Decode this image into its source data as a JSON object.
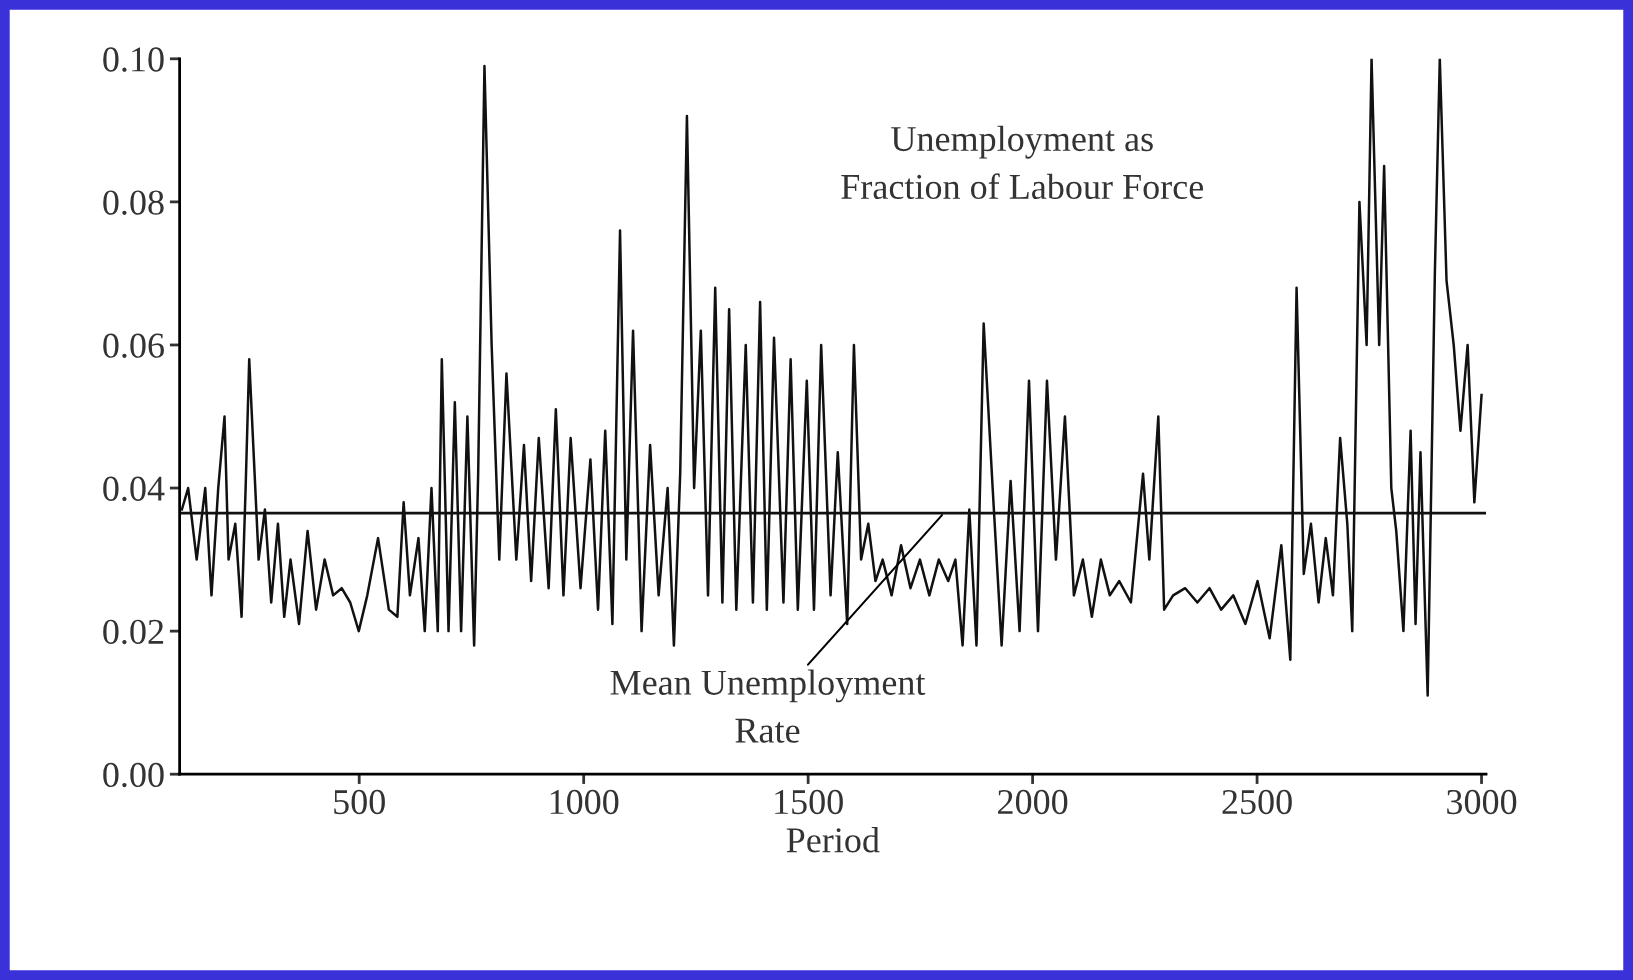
{
  "chart_data": {
    "type": "line",
    "xlabel": "Period",
    "xlim": [
      100,
      3010
    ],
    "ylim": [
      0,
      0.1
    ],
    "xticks": [
      500,
      1000,
      1500,
      2000,
      2500,
      3000
    ],
    "yticks": [
      {
        "value": 0,
        "label": "0.00"
      },
      {
        "value": 0.02,
        "label": "0.02"
      },
      {
        "value": 0.04,
        "label": "0.04"
      },
      {
        "value": 0.06,
        "label": "0.06"
      },
      {
        "value": 0.08,
        "label": "0.08"
      },
      {
        "value": 0.1,
        "label": "0.10"
      }
    ],
    "grid": false,
    "legend": false,
    "marker": "none",
    "line_style": "solid",
    "series": [
      {
        "color": "#111111",
        "x": [
          105,
          119,
          138,
          157,
          171,
          186,
          200,
          209,
          224,
          238,
          247,
          255,
          276,
          290,
          304,
          319,
          333,
          347,
          366,
          385,
          404,
          423,
          442,
          461,
          480,
          499,
          518,
          542,
          566,
          585,
          599,
          613,
          632,
          646,
          661,
          675,
          684,
          699,
          713,
          727,
          741,
          756,
          765,
          779,
          795,
          812,
          828,
          850,
          867,
          883,
          900,
          922,
          938,
          955,
          971,
          993,
          1015,
          1032,
          1048,
          1064,
          1081,
          1095,
          1110,
          1129,
          1148,
          1167,
          1187,
          1201,
          1215,
          1230,
          1246,
          1261,
          1277,
          1293,
          1309,
          1324,
          1340,
          1361,
          1377,
          1393,
          1408,
          1424,
          1445,
          1461,
          1477,
          1497,
          1513,
          1529,
          1550,
          1566,
          1587,
          1602,
          1618,
          1634,
          1650,
          1666,
          1686,
          1707,
          1728,
          1749,
          1770,
          1791,
          1812,
          1828,
          1844,
          1859,
          1875,
          1891,
          1911,
          1931,
          1951,
          1971,
          1992,
          2012,
          2032,
          2052,
          2072,
          2092,
          2112,
          2132,
          2152,
          2172,
          2193,
          2219,
          2246,
          2260,
          2280,
          2293,
          2313,
          2340,
          2367,
          2394,
          2420,
          2447,
          2474,
          2501,
          2528,
          2554,
          2574,
          2588,
          2604,
          2620,
          2637,
          2653,
          2669,
          2685,
          2701,
          2712,
          2728,
          2744,
          2755,
          2772,
          2783,
          2799,
          2810,
          2826,
          2842,
          2853,
          2864,
          2880,
          2896,
          2907,
          2922,
          2938,
          2953,
          2969,
          2984,
          3000
        ],
        "values": [
          0.037,
          0.04,
          0.03,
          0.04,
          0.025,
          0.04,
          0.05,
          0.03,
          0.035,
          0.022,
          0.04,
          0.058,
          0.03,
          0.037,
          0.024,
          0.035,
          0.022,
          0.03,
          0.021,
          0.034,
          0.023,
          0.03,
          0.025,
          0.026,
          0.024,
          0.02,
          0.025,
          0.033,
          0.023,
          0.022,
          0.038,
          0.025,
          0.033,
          0.02,
          0.04,
          0.02,
          0.058,
          0.02,
          0.052,
          0.02,
          0.05,
          0.018,
          0.042,
          0.099,
          0.06,
          0.03,
          0.056,
          0.03,
          0.046,
          0.027,
          0.047,
          0.026,
          0.051,
          0.025,
          0.047,
          0.026,
          0.044,
          0.023,
          0.048,
          0.021,
          0.076,
          0.03,
          0.062,
          0.02,
          0.046,
          0.025,
          0.04,
          0.018,
          0.042,
          0.092,
          0.04,
          0.062,
          0.025,
          0.068,
          0.024,
          0.065,
          0.023,
          0.06,
          0.024,
          0.066,
          0.023,
          0.061,
          0.024,
          0.058,
          0.023,
          0.055,
          0.023,
          0.06,
          0.025,
          0.045,
          0.021,
          0.06,
          0.03,
          0.035,
          0.027,
          0.03,
          0.025,
          0.032,
          0.026,
          0.03,
          0.025,
          0.03,
          0.027,
          0.03,
          0.018,
          0.037,
          0.018,
          0.063,
          0.04,
          0.018,
          0.041,
          0.02,
          0.055,
          0.02,
          0.055,
          0.03,
          0.05,
          0.025,
          0.03,
          0.022,
          0.03,
          0.025,
          0.027,
          0.024,
          0.042,
          0.03,
          0.05,
          0.023,
          0.025,
          0.026,
          0.024,
          0.026,
          0.023,
          0.025,
          0.021,
          0.027,
          0.019,
          0.032,
          0.016,
          0.068,
          0.028,
          0.035,
          0.024,
          0.033,
          0.025,
          0.047,
          0.035,
          0.02,
          0.08,
          0.06,
          0.1,
          0.06,
          0.085,
          0.04,
          0.034,
          0.02,
          0.048,
          0.021,
          0.045,
          0.011,
          0.07,
          0.1,
          0.069,
          0.06,
          0.048,
          0.06,
          0.038,
          0.053
        ]
      }
    ],
    "ref_lines": [
      {
        "axis": "y",
        "value": 0.0365,
        "label": "Mean Unemployment\nRate",
        "color": "#111111",
        "line_style": "solid"
      }
    ],
    "annotations": [
      "Unemployment as\nFraction of Labour Force"
    ]
  }
}
